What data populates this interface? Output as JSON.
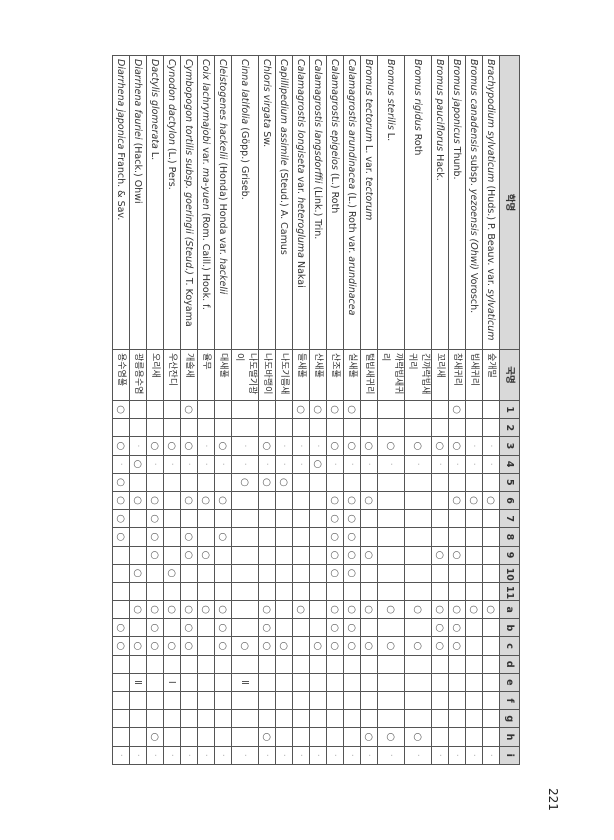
{
  "header": {
    "sci_name": "학명",
    "kor_name": "국명",
    "columns": [
      "1",
      "2",
      "3",
      "4",
      "5",
      "6",
      "7",
      "8",
      "9",
      "10",
      "11",
      "a",
      "b",
      "c",
      "d",
      "e",
      "f",
      "g",
      "h",
      "i"
    ]
  },
  "rows": [
    {
      "name": [
        {
          "t": "Brachypodium sylvaticum",
          "i": true
        },
        {
          "t": " (Huds.) P. Beauv. var. "
        },
        {
          "t": "sylvaticum",
          "i": true
        }
      ],
      "kor": "숲개밀",
      "marks": [
        "",
        "",
        "·",
        "·",
        "",
        "○",
        "",
        "",
        "",
        "",
        "",
        "○",
        "",
        "",
        "",
        "",
        "",
        "",
        "",
        "·"
      ]
    },
    {
      "name": [
        {
          "t": "Bromus canadensis",
          "i": true
        },
        {
          "t": " subsp. "
        },
        {
          "t": "yezoensis (Ohwi)",
          "i": true
        },
        {
          "t": " Vorosch."
        }
      ],
      "kor": "빕새귀리",
      "marks": [
        "",
        "",
        "·",
        "·",
        "",
        "○",
        "",
        "",
        "",
        "",
        "",
        "○",
        "",
        "",
        "",
        "",
        "",
        "",
        "",
        "·"
      ]
    },
    {
      "name": [
        {
          "t": "Bromus japonicus",
          "i": true
        },
        {
          "t": " Thunb."
        }
      ],
      "kor": "참새귀리",
      "marks": [
        "○",
        "",
        "○",
        "·",
        "",
        "○",
        "",
        "",
        "○",
        "",
        "",
        "○",
        "○",
        "○",
        "",
        "",
        "",
        "",
        "",
        "·"
      ]
    },
    {
      "name": [
        {
          "t": "Bromus pauciflorus",
          "i": true
        },
        {
          "t": " Hack."
        }
      ],
      "kor": "꼬리새",
      "marks": [
        "",
        "",
        "○",
        "·",
        "",
        "",
        "",
        "",
        "○",
        "",
        "",
        "○",
        "○",
        "○",
        "",
        "",
        "",
        "",
        "",
        "·"
      ]
    },
    {
      "name": [
        {
          "t": "Bromus rigidus",
          "i": true
        },
        {
          "t": " Roth"
        }
      ],
      "kor": "긴까락빕새귀리",
      "marks": [
        "",
        "",
        "○",
        "·",
        "",
        "",
        "",
        "",
        "",
        "",
        "",
        "○",
        "",
        "○",
        "",
        "",
        "",
        "",
        "○",
        "·"
      ]
    },
    {
      "name": [
        {
          "t": "Bromus sterilis",
          "i": true
        },
        {
          "t": " L."
        }
      ],
      "kor": "까락빕새귀리",
      "marks": [
        "",
        "",
        "○",
        "·",
        "",
        "",
        "",
        "",
        "",
        "",
        "",
        "○",
        "",
        "○",
        "",
        "",
        "",
        "",
        "○",
        "·"
      ]
    },
    {
      "name": [
        {
          "t": "Bromus tectorum",
          "i": true
        },
        {
          "t": " L. var. "
        },
        {
          "t": "tectorum",
          "i": true
        }
      ],
      "kor": "털빕새귀리",
      "marks": [
        "",
        "",
        "○",
        "·",
        "",
        "○",
        "",
        "",
        "○",
        "",
        "",
        "○",
        "",
        "○",
        "",
        "",
        "",
        "",
        "○",
        "·"
      ]
    },
    {
      "name": [
        {
          "t": "Calamagrostis arundinacea",
          "i": true
        },
        {
          "t": " (L.) Roth var. "
        },
        {
          "t": "arundinacea",
          "i": true
        }
      ],
      "kor": "실새풀",
      "marks": [
        "○",
        "",
        "○",
        "·",
        "",
        "○",
        "○",
        "○",
        "○",
        "○",
        "",
        "○",
        "○",
        "○",
        "",
        "",
        "",
        "",
        "",
        "·"
      ]
    },
    {
      "name": [
        {
          "t": "Calamagrostis epigeios",
          "i": true
        },
        {
          "t": " (L.) Roth"
        }
      ],
      "kor": "산조풀",
      "marks": [
        "○",
        "",
        "○",
        "·",
        "",
        "○",
        "○",
        "○",
        "○",
        "○",
        "",
        "○",
        "○",
        "○",
        "",
        "",
        "",
        "",
        "",
        "·"
      ]
    },
    {
      "name": [
        {
          "t": "Calamagrostis langsdorffii",
          "i": true
        },
        {
          "t": " (Link.) Trin."
        }
      ],
      "kor": "산새풀",
      "marks": [
        "○",
        "",
        "·",
        "○",
        "",
        "",
        "",
        "",
        "",
        "",
        "",
        "",
        "",
        "○",
        "",
        "",
        "",
        "",
        "",
        "·"
      ]
    },
    {
      "name": [
        {
          "t": "Calamagrostis longiseta",
          "i": true
        },
        {
          "t": " var. "
        },
        {
          "t": "heterogluma",
          "i": true
        },
        {
          "t": " Nakai"
        }
      ],
      "kor": "들새풀",
      "marks": [
        "○",
        "",
        "·",
        "·",
        "",
        "",
        "",
        "",
        "",
        "",
        "",
        "○",
        "",
        "",
        "",
        "",
        "",
        "",
        "",
        "·"
      ]
    },
    {
      "name": [
        {
          "t": "Capillipedium assimile",
          "i": true
        },
        {
          "t": " (Steud.) A. Camus"
        }
      ],
      "kor": "나도기름새",
      "marks": [
        "",
        "",
        "·",
        "·",
        "○",
        "",
        "",
        "",
        "",
        "",
        "",
        "",
        "",
        "○",
        "",
        "",
        "",
        "",
        "",
        "·"
      ]
    },
    {
      "name": [
        {
          "t": "Chloris virgata",
          "i": true
        },
        {
          "t": " Sw."
        }
      ],
      "kor": "나도바랭이",
      "marks": [
        "",
        "",
        "○",
        "·",
        "○",
        "",
        "",
        "",
        "",
        "",
        "",
        "○",
        "○",
        "○",
        "",
        "",
        "",
        "",
        "○",
        "·"
      ]
    },
    {
      "name": [
        {
          "t": "Cinna latifolia",
          "i": true
        },
        {
          "t": " (Göpp.) Griseb."
        }
      ],
      "kor": "나도딸기광이",
      "marks": [
        "",
        "",
        "·",
        "·",
        "○",
        "",
        "",
        "",
        "",
        "",
        "",
        "",
        "",
        "○",
        "",
        "Ⅱ",
        "",
        "",
        "",
        "·"
      ]
    },
    {
      "name": [
        {
          "t": "Cleistogenes hackelii",
          "i": true
        },
        {
          "t": " (Honda) Honda var. "
        },
        {
          "t": "hackelii",
          "i": true
        }
      ],
      "kor": "대새풀",
      "marks": [
        "",
        "",
        "○",
        "·",
        "",
        "○",
        "",
        "○",
        "",
        "",
        "",
        "○",
        "○",
        "○",
        "",
        "",
        "",
        "",
        "",
        "·"
      ]
    },
    {
      "name": [
        {
          "t": "Coix lachrymajobi",
          "i": true
        },
        {
          "t": " var. "
        },
        {
          "t": "ma-yuen",
          "i": true
        },
        {
          "t": " (Rom. Caill.) Hook. f."
        }
      ],
      "kor": "율무",
      "marks": [
        "",
        "",
        "·",
        "·",
        "",
        "○",
        "",
        "",
        "○",
        "",
        "",
        "○",
        "",
        "",
        "",
        "",
        "",
        "",
        "",
        "·"
      ]
    },
    {
      "name": [
        {
          "t": "Cymbopogon tortilis subsp. goeringii (Steud.)",
          "i": true
        },
        {
          "t": " T. Koyama"
        }
      ],
      "kor": "개솔새",
      "marks": [
        "○",
        "",
        "○",
        "·",
        "",
        "○",
        "",
        "○",
        "○",
        "",
        "",
        "○",
        "○",
        "○",
        "",
        "",
        "",
        "",
        "",
        "·"
      ]
    },
    {
      "name": [
        {
          "t": "Cynodon dactylon",
          "i": true
        },
        {
          "t": " (L.) Pers."
        }
      ],
      "kor": "우산잔디",
      "marks": [
        "",
        "",
        "○",
        "·",
        "",
        "",
        "",
        "",
        "",
        "○",
        "",
        "○",
        "",
        "○",
        "",
        "Ⅰ",
        "",
        "",
        "",
        "·"
      ]
    },
    {
      "name": [
        {
          "t": "Dactylis glomerata",
          "i": true
        },
        {
          "t": " L."
        }
      ],
      "kor": "오리새",
      "marks": [
        "",
        "",
        "○",
        "·",
        "",
        "○",
        "○",
        "○",
        "○",
        "",
        "",
        "○",
        "○",
        "○",
        "",
        "",
        "",
        "",
        "○",
        "·"
      ]
    },
    {
      "name": [
        {
          "t": "Diarrhena fauriei",
          "i": true
        },
        {
          "t": " (Hack.) Ohwi"
        }
      ],
      "kor": "광릉용수염",
      "marks": [
        "",
        "",
        "·",
        "○",
        "",
        "○",
        "",
        "",
        "",
        "○",
        "",
        "○",
        "",
        "○",
        "",
        "Ⅱ",
        "",
        "",
        "",
        "·"
      ]
    },
    {
      "name": [
        {
          "t": "Diarrhena japonica",
          "i": true
        },
        {
          "t": " Franch. & Sav."
        }
      ],
      "kor": "용수염풀",
      "marks": [
        "○",
        "",
        "○",
        "·",
        "○",
        "○",
        "○",
        "○",
        "",
        "",
        "",
        "",
        "○",
        "○",
        "",
        "",
        "",
        "",
        "",
        "·"
      ]
    }
  ],
  "page_number": "221"
}
